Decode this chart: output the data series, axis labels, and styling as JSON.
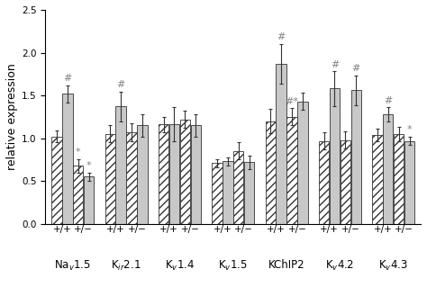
{
  "group_labels": [
    "Na$_v$1.5",
    "K$_{ir}$2.1",
    "K$_v$1.4",
    "K$_v$1.5",
    "KChIP2",
    "K$_v$4.2",
    "K$_v$4.3"
  ],
  "bar_values": [
    [
      1.02,
      1.52,
      0.68,
      0.55
    ],
    [
      1.05,
      1.37,
      1.07,
      1.15
    ],
    [
      1.16,
      1.16,
      1.22,
      1.15
    ],
    [
      0.71,
      0.73,
      0.85,
      0.72
    ],
    [
      1.2,
      1.87,
      1.25,
      1.43
    ],
    [
      0.97,
      1.58,
      0.98,
      1.56
    ],
    [
      1.04,
      1.28,
      1.05,
      0.97
    ]
  ],
  "bar_errors": [
    [
      0.07,
      0.1,
      0.08,
      0.05
    ],
    [
      0.1,
      0.17,
      0.1,
      0.13
    ],
    [
      0.09,
      0.2,
      0.1,
      0.13
    ],
    [
      0.05,
      0.05,
      0.1,
      0.08
    ],
    [
      0.14,
      0.23,
      0.1,
      0.1
    ],
    [
      0.1,
      0.2,
      0.1,
      0.17
    ],
    [
      0.07,
      0.08,
      0.08,
      0.05
    ]
  ],
  "ann_map": {
    "1": "#",
    "2": "*",
    "3": "*",
    "5": "#",
    "17": "#",
    "18": "#*",
    "21": "#",
    "23": "#",
    "25": "#",
    "27": "*"
  },
  "ylabel": "relative expression",
  "ylim": [
    0,
    2.5
  ],
  "yticks": [
    0,
    0.5,
    1.0,
    1.5,
    2.0,
    2.5
  ],
  "bar_fill_color": "#c8c8c8",
  "bar_hatch_pattern": "////",
  "bar_edge_color": "#333333",
  "background_color": "#ffffff",
  "annotation_color": "#808080",
  "annotation_fontsize": 8,
  "ylabel_fontsize": 9,
  "tick_fontsize": 7.5,
  "group_label_fontsize": 8.5
}
